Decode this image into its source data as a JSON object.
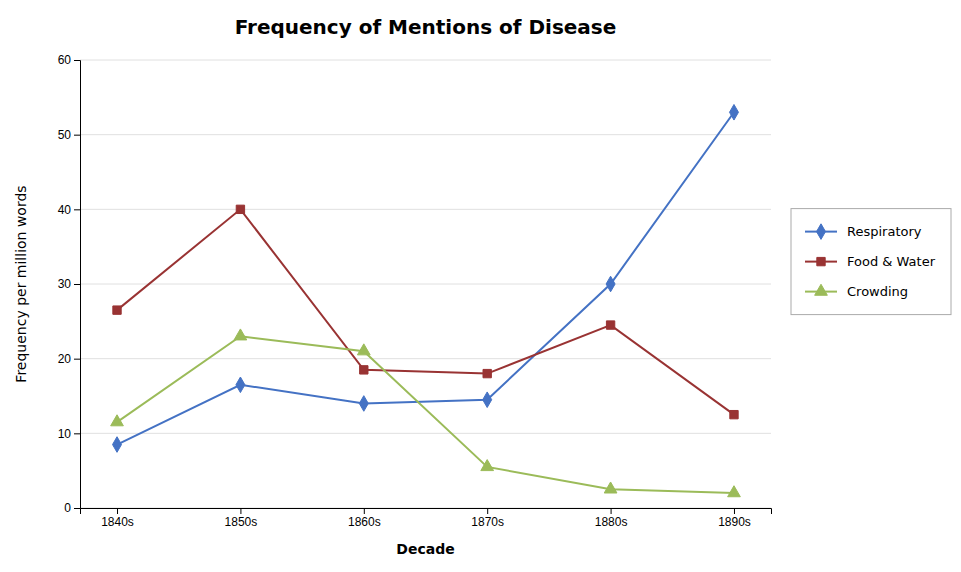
{
  "chart_data": {
    "type": "line",
    "title": "Frequency of Mentions of Disease",
    "xlabel": "Decade",
    "ylabel": "Frequency per million words",
    "categories": [
      "1840s",
      "1850s",
      "1860s",
      "1870s",
      "1880s",
      "1890s"
    ],
    "series": [
      {
        "name": "Respiratory",
        "color": "#4472C4",
        "marker": "diamond",
        "values": [
          8.5,
          16.5,
          14.0,
          14.5,
          30.0,
          53.0
        ]
      },
      {
        "name": "Food & Water",
        "color": "#993333",
        "marker": "square",
        "values": [
          26.5,
          40.0,
          18.5,
          18.0,
          24.5,
          12.5
        ]
      },
      {
        "name": "Crowding",
        "color": "#9BBB59",
        "marker": "triangle",
        "values": [
          11.5,
          23.0,
          21.0,
          5.5,
          2.5,
          2.0
        ]
      }
    ],
    "ylim": [
      0,
      60
    ],
    "yticks": [
      0,
      10,
      20,
      30,
      40,
      50,
      60
    ],
    "grid": "y",
    "legend": "right"
  }
}
